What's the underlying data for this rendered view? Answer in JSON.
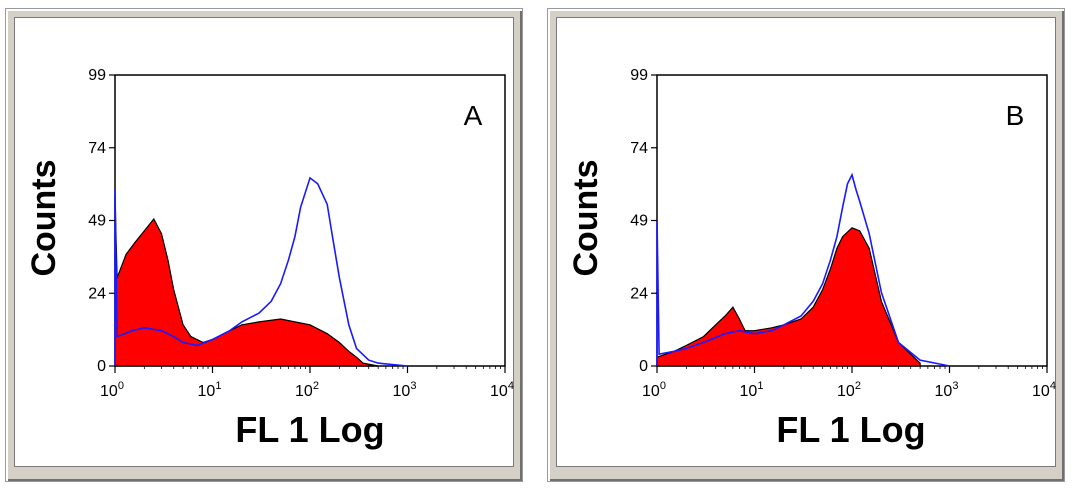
{
  "colors": {
    "filled": "#ff0000",
    "filled_outline": "#000000",
    "overlay": "#1a1aff",
    "frame": "#d4d0c8"
  },
  "chart_data": [
    {
      "type": "area",
      "title": "A",
      "xlabel": "FL 1 Log",
      "ylabel": "Counts",
      "x_scale": "log",
      "xlim": [
        1,
        10000
      ],
      "ylim": [
        0,
        99
      ],
      "x_ticks": [
        {
          "base": "10",
          "exp": "0"
        },
        {
          "base": "10",
          "exp": "1"
        },
        {
          "base": "10",
          "exp": "2"
        },
        {
          "base": "10",
          "exp": "3"
        },
        {
          "base": "10",
          "exp": "4"
        }
      ],
      "y_ticks": [
        "0",
        "24",
        "49",
        "74",
        "99"
      ],
      "grid": false,
      "series": [
        {
          "style": "filled",
          "x": [
            1,
            1.05,
            1.3,
            1.6,
            2.0,
            2.5,
            3.0,
            3.5,
            4.0,
            5.0,
            6.0,
            8.0,
            10,
            15,
            20,
            30,
            50,
            70,
            100,
            150,
            200,
            250,
            300,
            350,
            500
          ],
          "values": [
            58,
            30,
            38,
            42,
            46,
            50,
            45,
            36,
            26,
            14,
            10,
            8,
            9,
            12,
            14,
            15,
            16,
            15,
            14,
            11,
            8,
            5,
            3,
            1,
            0
          ]
        },
        {
          "style": "outline",
          "x": [
            1,
            1.05,
            1.5,
            2.0,
            3.0,
            4.0,
            5.0,
            7.0,
            10,
            15,
            20,
            30,
            40,
            50,
            60,
            70,
            80,
            100,
            120,
            150,
            170,
            200,
            250,
            300,
            400,
            500,
            1000
          ],
          "values": [
            60,
            10,
            12,
            13,
            12,
            10,
            8,
            7,
            9,
            12,
            15,
            18,
            22,
            28,
            36,
            44,
            54,
            64,
            62,
            55,
            44,
            30,
            14,
            6,
            2,
            1,
            0
          ]
        }
      ]
    },
    {
      "type": "area",
      "title": "B",
      "xlabel": "FL 1 Log",
      "ylabel": "Counts",
      "x_scale": "log",
      "xlim": [
        1,
        10000
      ],
      "ylim": [
        0,
        99
      ],
      "x_ticks": [
        {
          "base": "10",
          "exp": "0"
        },
        {
          "base": "10",
          "exp": "1"
        },
        {
          "base": "10",
          "exp": "2"
        },
        {
          "base": "10",
          "exp": "3"
        },
        {
          "base": "10",
          "exp": "4"
        }
      ],
      "y_ticks": [
        "0",
        "24",
        "49",
        "74",
        "99"
      ],
      "grid": false,
      "series": [
        {
          "style": "filled",
          "x": [
            1,
            1.5,
            2,
            3,
            4,
            5,
            6,
            7,
            8,
            10,
            15,
            20,
            30,
            40,
            50,
            60,
            70,
            80,
            100,
            120,
            150,
            200,
            300,
            500
          ],
          "values": [
            3,
            5,
            7,
            10,
            14,
            17,
            20,
            16,
            12,
            12,
            13,
            14,
            16,
            20,
            26,
            33,
            40,
            44,
            47,
            46,
            40,
            22,
            8,
            1
          ]
        },
        {
          "style": "outline",
          "x": [
            1,
            1.05,
            1.5,
            2,
            3,
            5,
            7,
            10,
            15,
            20,
            30,
            40,
            50,
            60,
            70,
            80,
            90,
            100,
            110,
            120,
            150,
            200,
            300,
            500,
            1000
          ],
          "values": [
            50,
            4,
            5,
            6,
            8,
            11,
            12,
            11,
            12,
            14,
            17,
            22,
            28,
            36,
            44,
            54,
            62,
            65,
            60,
            56,
            45,
            25,
            8,
            2,
            0
          ]
        }
      ]
    }
  ]
}
